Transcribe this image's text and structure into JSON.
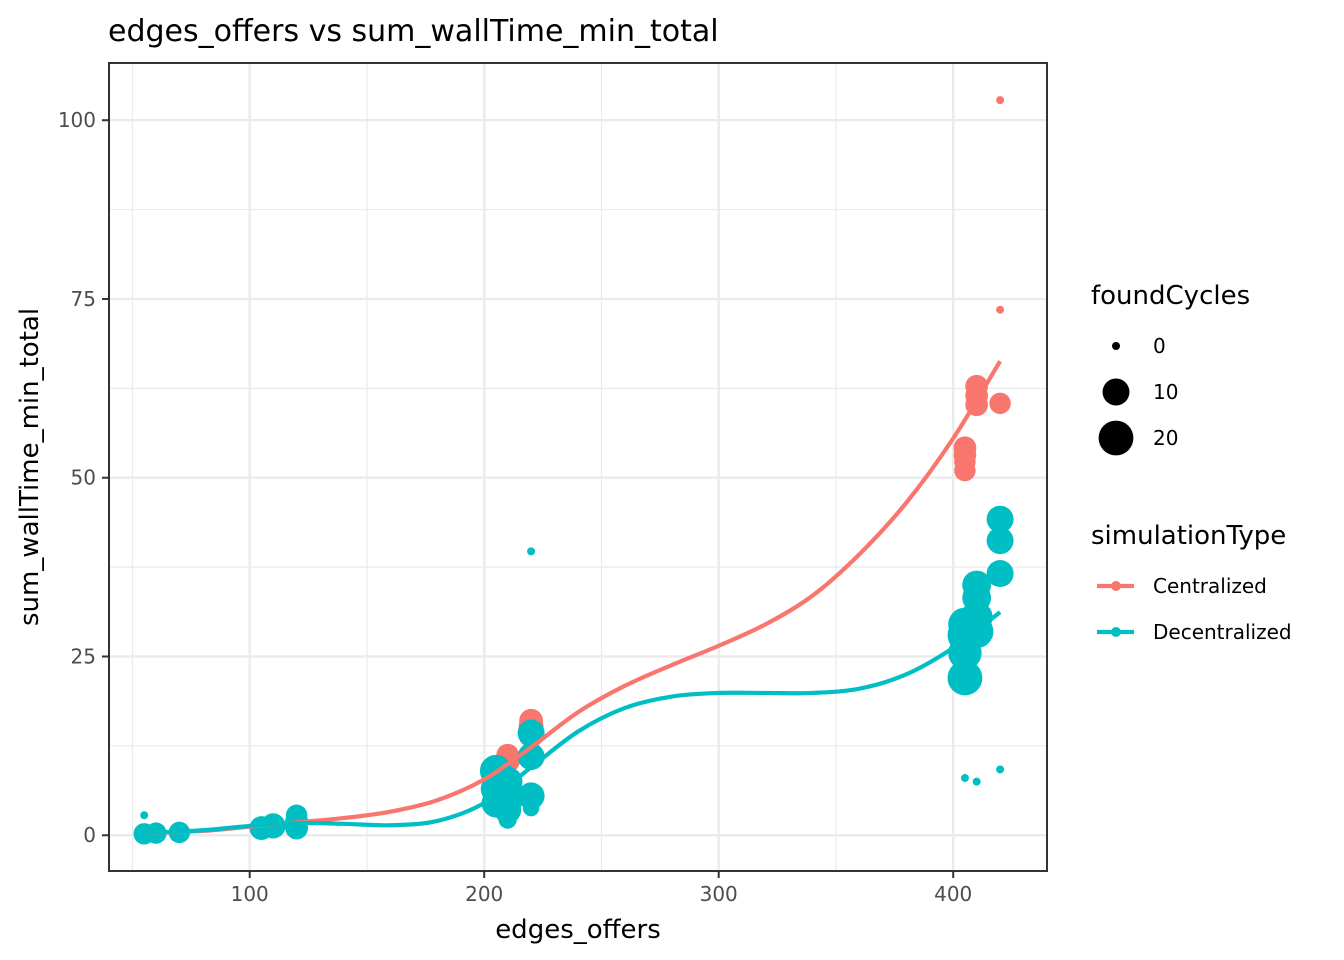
{
  "chart_data": {
    "type": "scatter",
    "title": "edges_offers  vs  sum_wallTime_min_total",
    "xlabel": "edges_offers",
    "ylabel": "sum_wallTime_min_total",
    "xlim": [
      40,
      440
    ],
    "ylim": [
      -5,
      108
    ],
    "x_ticks": [
      100,
      200,
      300,
      400
    ],
    "y_ticks": [
      0,
      25,
      50,
      75,
      100
    ],
    "x_tick_labels": [
      "100",
      "200",
      "300",
      "400"
    ],
    "y_tick_labels": [
      "0",
      "25",
      "50",
      "75",
      "100"
    ],
    "grid": true,
    "legend_position": "right",
    "size_legend": {
      "title": "foundCycles",
      "entries": [
        {
          "label": "0",
          "value": 0
        },
        {
          "label": "10",
          "value": 10
        },
        {
          "label": "20",
          "value": 20
        }
      ]
    },
    "color_legend": {
      "title": "simulationType",
      "entries": [
        "Centralized",
        "Decentralized"
      ]
    },
    "series": [
      {
        "name": "Centralized",
        "color": "#F8766D",
        "points": [
          {
            "x": 55,
            "y": 0.2,
            "size": 2
          },
          {
            "x": 60,
            "y": 0.3,
            "size": 3
          },
          {
            "x": 70,
            "y": 0.4,
            "size": 3
          },
          {
            "x": 105,
            "y": 1.2,
            "size": 4
          },
          {
            "x": 110,
            "y": 1.6,
            "size": 5
          },
          {
            "x": 120,
            "y": 2.2,
            "size": 5
          },
          {
            "x": 205,
            "y": 8,
            "size": 8
          },
          {
            "x": 210,
            "y": 10.5,
            "size": 8
          },
          {
            "x": 210,
            "y": 11.2,
            "size": 6
          },
          {
            "x": 220,
            "y": 14,
            "size": 8
          },
          {
            "x": 220,
            "y": 15.2,
            "size": 8
          },
          {
            "x": 220,
            "y": 16,
            "size": 7
          },
          {
            "x": 405,
            "y": 51,
            "size": 5
          },
          {
            "x": 405,
            "y": 52.2,
            "size": 5
          },
          {
            "x": 405,
            "y": 53.2,
            "size": 6
          },
          {
            "x": 405,
            "y": 54.2,
            "size": 6
          },
          {
            "x": 410,
            "y": 60.2,
            "size": 6
          },
          {
            "x": 410,
            "y": 61.5,
            "size": 6
          },
          {
            "x": 410,
            "y": 62.8,
            "size": 6
          },
          {
            "x": 420,
            "y": 60.4,
            "size": 5
          },
          {
            "x": 420,
            "y": 73.5,
            "size": 0
          },
          {
            "x": 420,
            "y": 102.8,
            "size": 0
          }
        ],
        "smooth": [
          {
            "x": 55,
            "y": 0.3
          },
          {
            "x": 80,
            "y": 0.6
          },
          {
            "x": 100,
            "y": 1.2
          },
          {
            "x": 120,
            "y": 1.8
          },
          {
            "x": 140,
            "y": 2.4
          },
          {
            "x": 160,
            "y": 3.3
          },
          {
            "x": 180,
            "y": 4.9
          },
          {
            "x": 200,
            "y": 7.8
          },
          {
            "x": 220,
            "y": 12.3
          },
          {
            "x": 240,
            "y": 17.2
          },
          {
            "x": 260,
            "y": 20.9
          },
          {
            "x": 280,
            "y": 23.8
          },
          {
            "x": 300,
            "y": 26.5
          },
          {
            "x": 320,
            "y": 29.5
          },
          {
            "x": 340,
            "y": 33.5
          },
          {
            "x": 360,
            "y": 39.3
          },
          {
            "x": 380,
            "y": 46.5
          },
          {
            "x": 400,
            "y": 55.5
          },
          {
            "x": 420,
            "y": 66.3
          }
        ]
      },
      {
        "name": "Decentralized",
        "color": "#00BFC4",
        "points": [
          {
            "x": 55,
            "y": 0.2,
            "size": 5
          },
          {
            "x": 55,
            "y": 2.8,
            "size": 0
          },
          {
            "x": 60,
            "y": 0.3,
            "size": 5
          },
          {
            "x": 70,
            "y": 0.4,
            "size": 5
          },
          {
            "x": 105,
            "y": 1.0,
            "size": 7
          },
          {
            "x": 110,
            "y": 1.3,
            "size": 8
          },
          {
            "x": 120,
            "y": 1.0,
            "size": 6
          },
          {
            "x": 120,
            "y": 2.0,
            "size": 6
          },
          {
            "x": 120,
            "y": 2.8,
            "size": 5
          },
          {
            "x": 205,
            "y": 4.5,
            "size": 12
          },
          {
            "x": 205,
            "y": 6.5,
            "size": 14
          },
          {
            "x": 205,
            "y": 9,
            "size": 16
          },
          {
            "x": 210,
            "y": 3.5,
            "size": 10
          },
          {
            "x": 210,
            "y": 5,
            "size": 14
          },
          {
            "x": 210,
            "y": 7.5,
            "size": 13
          },
          {
            "x": 210,
            "y": 2.2,
            "size": 3
          },
          {
            "x": 220,
            "y": 5.5,
            "size": 10
          },
          {
            "x": 220,
            "y": 11,
            "size": 10
          },
          {
            "x": 220,
            "y": 14.3,
            "size": 10
          },
          {
            "x": 220,
            "y": 3.8,
            "size": 2
          },
          {
            "x": 220,
            "y": 39.7,
            "size": 0
          },
          {
            "x": 405,
            "y": 22,
            "size": 20
          },
          {
            "x": 405,
            "y": 25.5,
            "size": 18
          },
          {
            "x": 405,
            "y": 28,
            "size": 20
          },
          {
            "x": 405,
            "y": 29.5,
            "size": 18
          },
          {
            "x": 405,
            "y": 8,
            "size": 0
          },
          {
            "x": 410,
            "y": 28.5,
            "size": 18
          },
          {
            "x": 410,
            "y": 30.5,
            "size": 16
          },
          {
            "x": 410,
            "y": 33.2,
            "size": 12
          },
          {
            "x": 410,
            "y": 35,
            "size": 12
          },
          {
            "x": 410,
            "y": 7.5,
            "size": 0
          },
          {
            "x": 420,
            "y": 36.6,
            "size": 10
          },
          {
            "x": 420,
            "y": 41.2,
            "size": 10
          },
          {
            "x": 420,
            "y": 44.2,
            "size": 10
          },
          {
            "x": 420,
            "y": 9.2,
            "size": 0
          }
        ],
        "smooth": [
          {
            "x": 55,
            "y": 0.3
          },
          {
            "x": 80,
            "y": 0.7
          },
          {
            "x": 100,
            "y": 1.3
          },
          {
            "x": 120,
            "y": 1.7
          },
          {
            "x": 140,
            "y": 1.6
          },
          {
            "x": 160,
            "y": 1.4
          },
          {
            "x": 180,
            "y": 2.0
          },
          {
            "x": 200,
            "y": 4.5
          },
          {
            "x": 220,
            "y": 9.5
          },
          {
            "x": 240,
            "y": 14.5
          },
          {
            "x": 260,
            "y": 17.8
          },
          {
            "x": 280,
            "y": 19.4
          },
          {
            "x": 300,
            "y": 19.9
          },
          {
            "x": 320,
            "y": 19.9
          },
          {
            "x": 340,
            "y": 19.9
          },
          {
            "x": 360,
            "y": 20.5
          },
          {
            "x": 380,
            "y": 22.5
          },
          {
            "x": 400,
            "y": 26.2
          },
          {
            "x": 420,
            "y": 31.2
          }
        ]
      }
    ]
  }
}
